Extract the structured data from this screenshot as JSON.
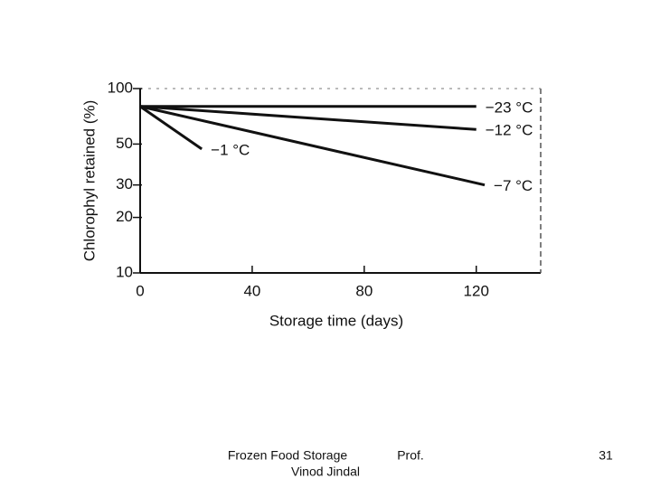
{
  "chart_data": {
    "type": "line",
    "x_label": "Storage time (days)",
    "y_label": "Chlorophyl retained (%)",
    "xlim": [
      0,
      143
    ],
    "xticks": [
      0,
      40,
      80,
      120
    ],
    "ylim": [
      10,
      100
    ],
    "yticks": [
      10,
      20,
      30,
      50,
      100
    ],
    "y_scale": "log",
    "grid": false,
    "series": [
      {
        "name": "−23 °C",
        "color": "#111111",
        "x": [
          0,
          120
        ],
        "values": [
          80,
          80
        ]
      },
      {
        "name": "−12 °C",
        "color": "#111111",
        "x": [
          0,
          120
        ],
        "values": [
          80,
          60
        ]
      },
      {
        "name": "−7 °C",
        "color": "#111111",
        "x": [
          0,
          123
        ],
        "values": [
          80,
          30
        ]
      },
      {
        "name": "−1 °C",
        "color": "#111111",
        "x": [
          0,
          22
        ],
        "values": [
          80,
          47
        ]
      }
    ]
  },
  "footer": {
    "left": "Frozen Food Storage",
    "middle": "Prof.",
    "author": "Vinod Jindal",
    "page": "31"
  }
}
